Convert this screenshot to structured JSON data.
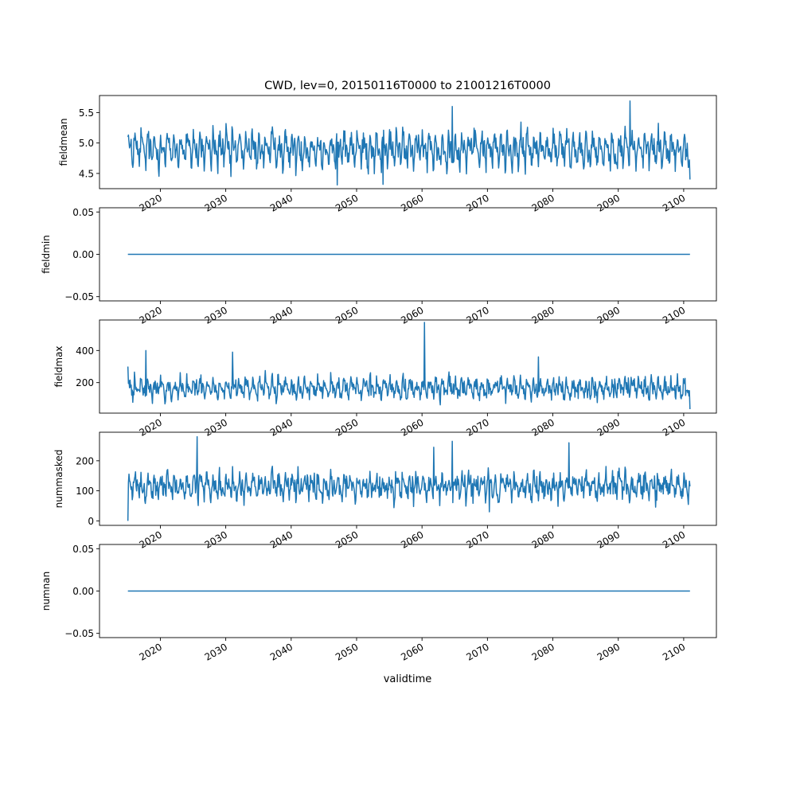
{
  "figure": {
    "title": "CWD, lev=0, 20150116T0000 to 21001216T0000",
    "xlabel": "validtime"
  },
  "colors": {
    "line": "#1f77b4",
    "axes": "#000000",
    "background": "#ffffff"
  },
  "chart_data": [
    {
      "type": "line",
      "ylabel": "fieldmean",
      "xlim": [
        2010.7,
        2105.0
      ],
      "ylim": [
        4.25,
        5.78
      ],
      "xticks": [
        2020,
        2030,
        2040,
        2050,
        2060,
        2070,
        2080,
        2090,
        2100
      ],
      "yticks": [
        4.5,
        5.0,
        5.5
      ],
      "ytick_labels": [
        "4.5",
        "5.0",
        "5.5"
      ],
      "x_range": [
        2015.04,
        2100.96
      ],
      "points": 1032,
      "series": {
        "base": 4.9,
        "seasonal_amplitude": 0.27,
        "noise": 0.1
      },
      "peaks": [
        [
          2064.6,
          5.6
        ],
        [
          2091.8,
          5.69
        ]
      ],
      "troughs": [
        [
          2047.0,
          4.31
        ],
        [
          2054.0,
          4.32
        ],
        [
          2030.8,
          4.45
        ]
      ],
      "first_value": 5.1,
      "last_value": 4.4
    },
    {
      "type": "line",
      "ylabel": "fieldmin",
      "xlim": [
        2010.7,
        2105.0
      ],
      "ylim": [
        -0.055,
        0.055
      ],
      "xticks": [
        2020,
        2030,
        2040,
        2050,
        2060,
        2070,
        2080,
        2090,
        2100
      ],
      "yticks": [
        -0.05,
        0.0,
        0.05
      ],
      "ytick_labels": [
        "−0.05",
        "0.00",
        "0.05"
      ],
      "x_range": [
        2015.04,
        2100.96
      ],
      "constant": 0.0
    },
    {
      "type": "line",
      "ylabel": "fieldmax",
      "xlim": [
        2010.7,
        2105.0
      ],
      "ylim": [
        10,
        590
      ],
      "xticks": [
        2020,
        2030,
        2040,
        2050,
        2060,
        2070,
        2080,
        2090,
        2100
      ],
      "yticks": [
        200,
        400
      ],
      "ytick_labels": [
        "200",
        "400"
      ],
      "x_range": [
        2015.04,
        2100.96
      ],
      "points": 1032,
      "series": {
        "base": 165,
        "seasonal_amplitude": 55,
        "noise": 25
      },
      "peaks": [
        [
          2060.4,
          575
        ],
        [
          2017.8,
          400
        ],
        [
          2031.0,
          390
        ],
        [
          2077.8,
          360
        ]
      ],
      "troughs": [],
      "first_value": 300,
      "last_value": 35
    },
    {
      "type": "line",
      "ylabel": "nummasked",
      "xlim": [
        2010.7,
        2105.0
      ],
      "ylim": [
        -15,
        295
      ],
      "xticks": [
        2020,
        2030,
        2040,
        2050,
        2060,
        2070,
        2080,
        2090,
        2100
      ],
      "yticks": [
        0,
        100,
        200
      ],
      "ytick_labels": [
        "0",
        "100",
        "200"
      ],
      "x_range": [
        2015.04,
        2100.96
      ],
      "points": 1032,
      "series": {
        "base": 115,
        "seasonal_amplitude": 35,
        "noise": 18
      },
      "peaks": [
        [
          2025.6,
          280
        ],
        [
          2064.6,
          265
        ],
        [
          2061.8,
          245
        ],
        [
          2082.5,
          260
        ]
      ],
      "troughs": [
        [
          2070.3,
          30
        ]
      ],
      "first_value": 0,
      "last_value": 115
    },
    {
      "type": "line",
      "ylabel": "numnan",
      "xlim": [
        2010.7,
        2105.0
      ],
      "ylim": [
        -0.055,
        0.055
      ],
      "xticks": [
        2020,
        2030,
        2040,
        2050,
        2060,
        2070,
        2080,
        2090,
        2100
      ],
      "xtick_labels": [
        "2020",
        "2030",
        "2040",
        "2050",
        "2060",
        "2070",
        "2080",
        "2090",
        "2100"
      ],
      "yticks": [
        -0.05,
        0.0,
        0.05
      ],
      "ytick_labels": [
        "−0.05",
        "0.00",
        "0.05"
      ],
      "x_range": [
        2015.04,
        2100.96
      ],
      "constant": 0.0
    }
  ]
}
